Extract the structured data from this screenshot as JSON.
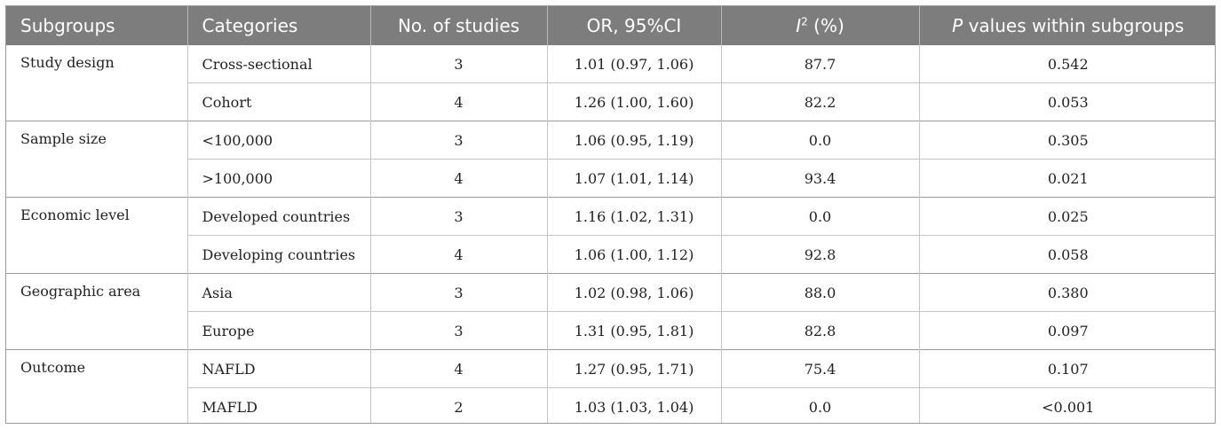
{
  "table": {
    "headers": {
      "subgroups": "Subgroups",
      "categories": "Categories",
      "studies": "No. of studies",
      "or": "OR, 95%CI",
      "i2_letter": "I",
      "i2_sup": "2",
      "i2_unit": " (%)",
      "p_letter": "P",
      "p_rest": " values within subgroups"
    },
    "groups": [
      {
        "name": "Study design",
        "rows": [
          {
            "category": "Cross-sectional",
            "studies": "3",
            "or": "1.01 (0.97, 1.06)",
            "i2": "87.7",
            "p": "0.542"
          },
          {
            "category": "Cohort",
            "studies": "4",
            "or": "1.26 (1.00, 1.60)",
            "i2": "82.2",
            "p": "0.053"
          }
        ]
      },
      {
        "name": "Sample size",
        "rows": [
          {
            "category": "<100,000",
            "studies": "3",
            "or": "1.06 (0.95, 1.19)",
            "i2": "0.0",
            "p": "0.305"
          },
          {
            "category": ">100,000",
            "studies": "4",
            "or": "1.07 (1.01, 1.14)",
            "i2": "93.4",
            "p": "0.021"
          }
        ]
      },
      {
        "name": "Economic level",
        "rows": [
          {
            "category": "Developed countries",
            "studies": "3",
            "or": "1.16 (1.02, 1.31)",
            "i2": "0.0",
            "p": "0.025"
          },
          {
            "category": "Developing countries",
            "studies": "4",
            "or": "1.06 (1.00, 1.12)",
            "i2": "92.8",
            "p": "0.058"
          }
        ]
      },
      {
        "name": "Geographic area",
        "rows": [
          {
            "category": "Asia",
            "studies": "3",
            "or": "1.02 (0.98, 1.06)",
            "i2": "88.0",
            "p": "0.380"
          },
          {
            "category": "Europe",
            "studies": "3",
            "or": "1.31 (0.95, 1.81)",
            "i2": "82.8",
            "p": "0.097"
          }
        ]
      },
      {
        "name": "Outcome",
        "rows": [
          {
            "category": "NAFLD",
            "studies": "4",
            "or": "1.27 (0.95, 1.71)",
            "i2": "75.4",
            "p": "0.107"
          },
          {
            "category": "MAFLD",
            "studies": "2",
            "or": "1.03 (1.03, 1.04)",
            "i2": "0.0",
            "p": "<0.001"
          }
        ]
      }
    ]
  }
}
